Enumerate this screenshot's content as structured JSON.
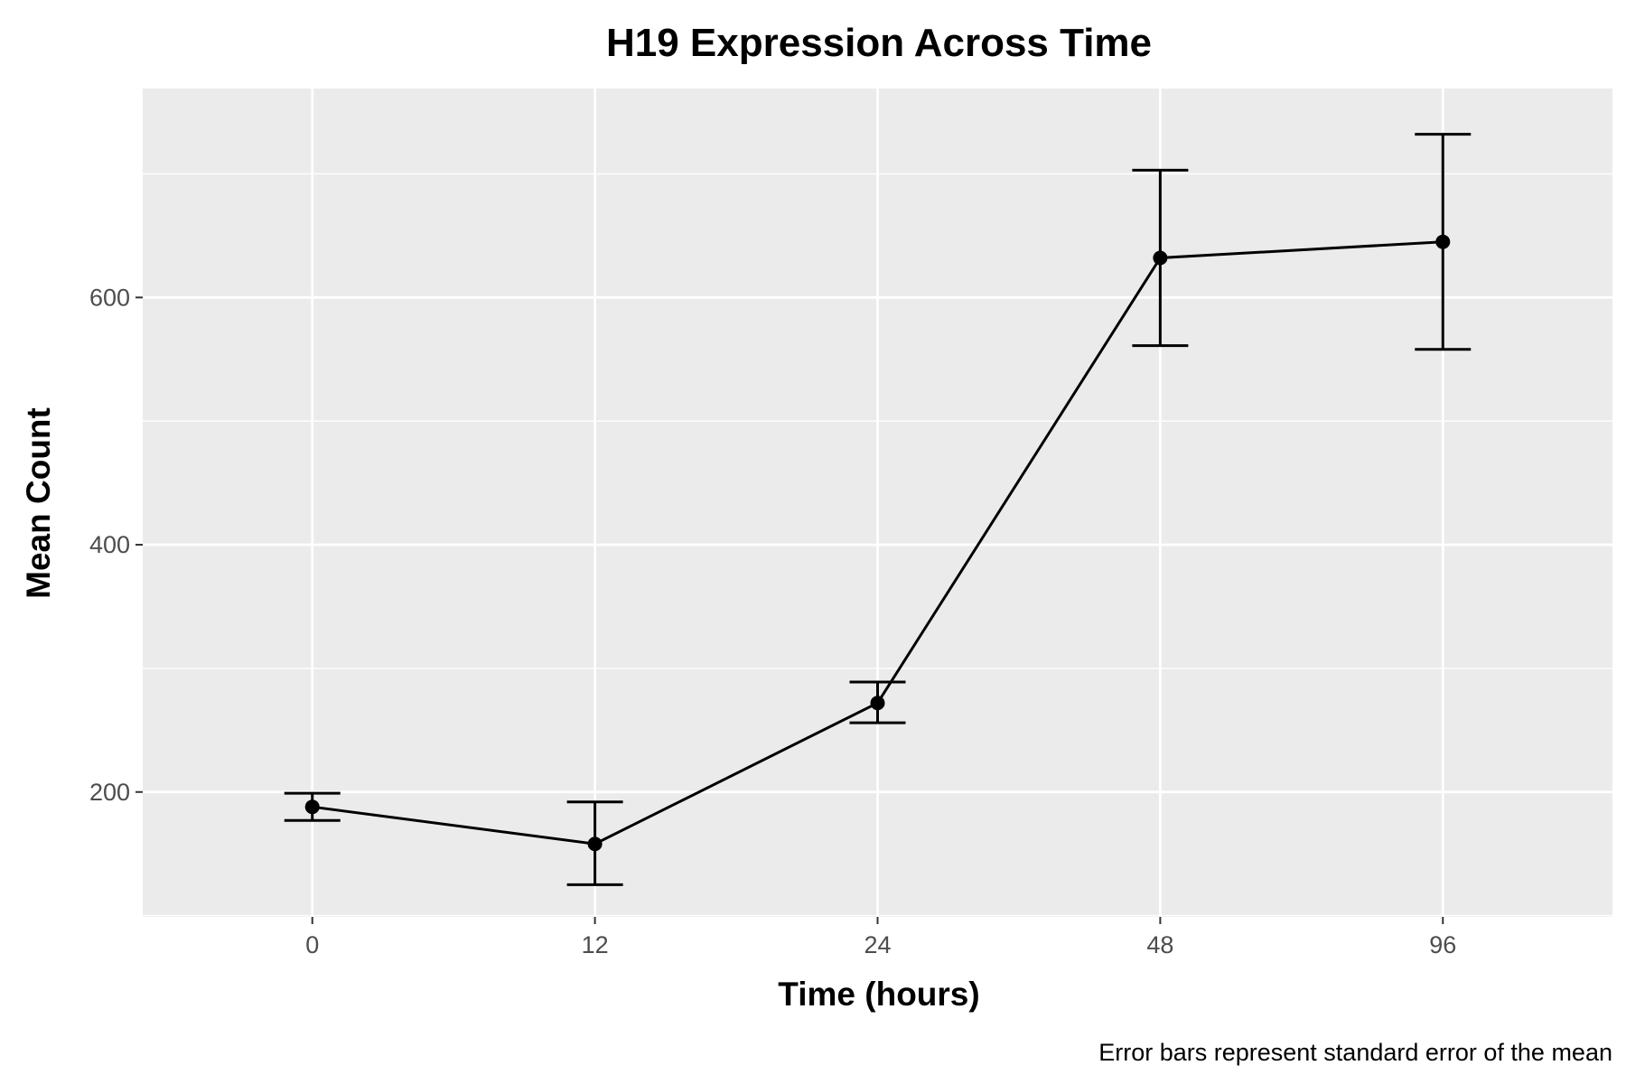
{
  "chart_data": {
    "type": "line",
    "title": "H19 Expression Across Time",
    "xlabel": "Time (hours)",
    "ylabel": "Mean Count",
    "caption": "Error bars represent standard error of the mean",
    "categories": [
      "0",
      "12",
      "24",
      "48",
      "96"
    ],
    "series": [
      {
        "values": [
          188,
          158,
          272,
          632,
          645
        ],
        "error_low": [
          177,
          125,
          256,
          561,
          558
        ],
        "error_high": [
          199,
          192,
          289,
          703,
          732
        ]
      }
    ],
    "y_ticks": [
      200,
      400,
      600
    ],
    "y_tick_labels": [
      "200",
      "400",
      "600"
    ],
    "ylim": [
      99,
      769
    ],
    "grid": true,
    "colors": {
      "panel": "#ebebeb",
      "grid": "#ffffff",
      "line": "#000000"
    }
  }
}
